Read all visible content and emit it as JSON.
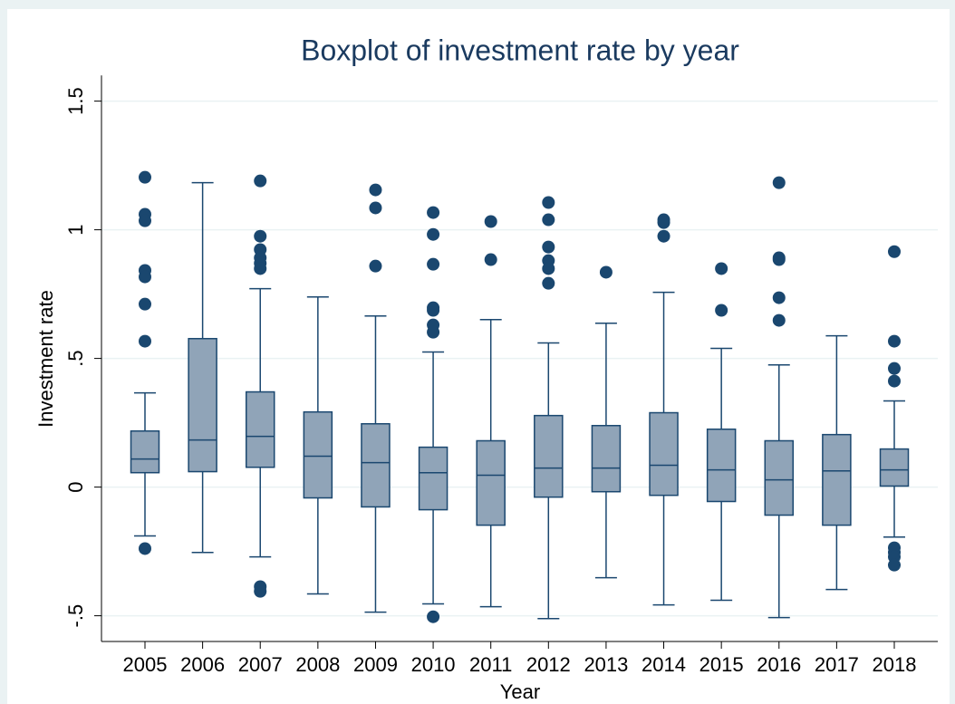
{
  "chart_data": {
    "type": "box",
    "title": "Boxplot of investment rate by year",
    "x_label": "Year",
    "y_label": "Investment rate",
    "categories": [
      "2005",
      "2006",
      "2007",
      "2008",
      "2009",
      "2010",
      "2011",
      "2012",
      "2013",
      "2014",
      "2015",
      "2016",
      "2017",
      "2018"
    ],
    "color": "#90a4b8",
    "line_color": "#1a476f",
    "ylim": [
      -0.6,
      1.6
    ],
    "yticks": [
      {
        "value": -0.5,
        "label": "-.5"
      },
      0,
      {
        "value": 0.5,
        "label": ".5"
      },
      1,
      1.5
    ],
    "grid": true,
    "boxes": [
      {
        "whisker_low": -0.19,
        "q1": 0.056,
        "median": 0.109,
        "q3": 0.218,
        "whisker_high": 0.366,
        "outliers": [
          1.204,
          1.06,
          1.035,
          0.842,
          0.817,
          0.711,
          0.567,
          -0.239
        ]
      },
      {
        "whisker_low": -0.254,
        "q1": 0.06,
        "median": 0.183,
        "q3": 0.577,
        "whisker_high": 1.183,
        "outliers": []
      },
      {
        "whisker_low": -0.271,
        "q1": 0.077,
        "median": 0.197,
        "q3": 0.37,
        "whisker_high": 0.771,
        "outliers": [
          1.19,
          0.975,
          0.923,
          0.891,
          0.87,
          0.849,
          -0.387,
          -0.405
        ]
      },
      {
        "whisker_low": -0.415,
        "q1": -0.042,
        "median": 0.12,
        "q3": 0.292,
        "whisker_high": 0.739,
        "outliers": []
      },
      {
        "whisker_low": -0.486,
        "q1": -0.077,
        "median": 0.095,
        "q3": 0.246,
        "whisker_high": 0.665,
        "outliers": [
          1.155,
          1.085,
          0.859
        ]
      },
      {
        "whisker_low": -0.454,
        "q1": -0.088,
        "median": 0.056,
        "q3": 0.155,
        "whisker_high": 0.525,
        "outliers": [
          1.067,
          0.982,
          0.866,
          0.697,
          0.687,
          0.63,
          0.602,
          -0.504
        ]
      },
      {
        "whisker_low": -0.465,
        "q1": -0.148,
        "median": 0.046,
        "q3": 0.18,
        "whisker_high": 0.651,
        "outliers": [
          1.032,
          0.884
        ]
      },
      {
        "whisker_low": -0.511,
        "q1": -0.039,
        "median": 0.074,
        "q3": 0.278,
        "whisker_high": 0.56,
        "outliers": [
          1.106,
          1.039,
          0.933,
          0.88,
          0.849,
          0.792
        ]
      },
      {
        "whisker_low": -0.352,
        "q1": -0.018,
        "median": 0.074,
        "q3": 0.239,
        "whisker_high": 0.637,
        "outliers": [
          0.835
        ]
      },
      {
        "whisker_low": -0.458,
        "q1": -0.032,
        "median": 0.085,
        "q3": 0.289,
        "whisker_high": 0.757,
        "outliers": [
          1.039,
          1.028,
          0.975
        ]
      },
      {
        "whisker_low": -0.44,
        "q1": -0.056,
        "median": 0.067,
        "q3": 0.225,
        "whisker_high": 0.539,
        "outliers": [
          0.849,
          0.687
        ]
      },
      {
        "whisker_low": -0.507,
        "q1": -0.109,
        "median": 0.028,
        "q3": 0.18,
        "whisker_high": 0.475,
        "outliers": [
          1.183,
          0.891,
          0.884,
          0.736,
          0.648
        ]
      },
      {
        "whisker_low": -0.398,
        "q1": -0.148,
        "median": 0.063,
        "q3": 0.204,
        "whisker_high": 0.588,
        "outliers": []
      },
      {
        "whisker_low": -0.194,
        "q1": 0.004,
        "median": 0.067,
        "q3": 0.148,
        "whisker_high": 0.335,
        "outliers": [
          0.915,
          0.567,
          0.461,
          0.412,
          -0.236,
          -0.254,
          -0.271,
          -0.303
        ]
      }
    ]
  }
}
